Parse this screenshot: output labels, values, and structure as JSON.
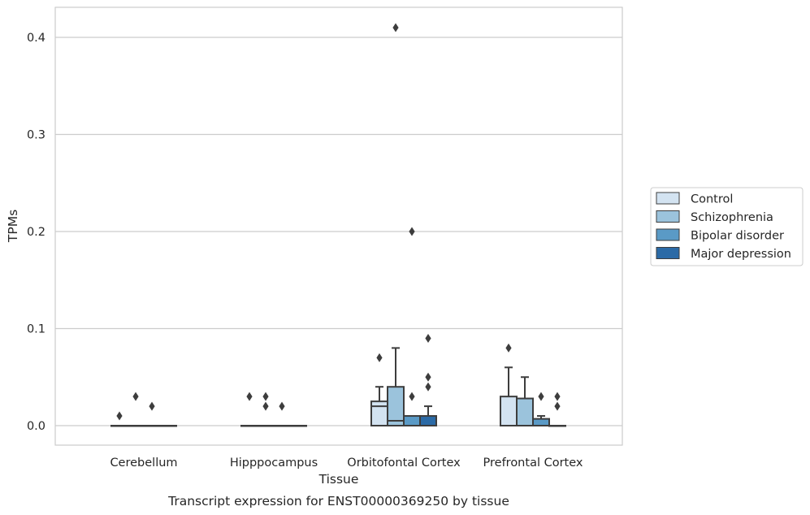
{
  "chart_data": {
    "type": "box",
    "title": "",
    "caption": "Transcript expression for ENST00000369250 by tissue",
    "xlabel": "Tissue",
    "ylabel": "TPMs",
    "ylim": [
      -0.02,
      0.43
    ],
    "yticks": [
      0.0,
      0.1,
      0.2,
      0.3,
      0.4
    ],
    "ytick_labels": [
      "0.0",
      "0.1",
      "0.2",
      "0.3",
      "0.4"
    ],
    "grid": "horizontal",
    "legend_position": "right",
    "categories": [
      "Cerebellum",
      "Hipppocampus",
      "Orbitofontal Cortex",
      "Prefrontal Cortex"
    ],
    "series": [
      {
        "name": "Control",
        "color": "#d3e3f1",
        "boxes": [
          {
            "q1": 0,
            "median": 0,
            "q3": 0,
            "whislo": 0,
            "whishi": 0,
            "fliers": [
              0.01
            ]
          },
          {
            "q1": 0,
            "median": 0,
            "q3": 0,
            "whislo": 0,
            "whishi": 0,
            "fliers": [
              0.03
            ]
          },
          {
            "q1": 0,
            "median": 0.02,
            "q3": 0.025,
            "whislo": 0,
            "whishi": 0.04,
            "fliers": [
              0.07
            ]
          },
          {
            "q1": 0,
            "median": 0,
            "q3": 0.03,
            "whislo": 0,
            "whishi": 0.06,
            "fliers": [
              0.08
            ]
          }
        ]
      },
      {
        "name": "Schizophrenia",
        "color": "#9bc3dc",
        "boxes": [
          {
            "q1": 0,
            "median": 0,
            "q3": 0,
            "whislo": 0,
            "whishi": 0,
            "fliers": [
              0.03
            ]
          },
          {
            "q1": 0,
            "median": 0,
            "q3": 0,
            "whislo": 0,
            "whishi": 0,
            "fliers": [
              0.03,
              0.02
            ]
          },
          {
            "q1": 0,
            "median": 0.005,
            "q3": 0.04,
            "whislo": 0,
            "whishi": 0.08,
            "fliers": [
              0.41
            ]
          },
          {
            "q1": 0,
            "median": 0,
            "q3": 0.028,
            "whislo": 0,
            "whishi": 0.05,
            "fliers": []
          }
        ]
      },
      {
        "name": "Bipolar disorder",
        "color": "#5a9ac6",
        "boxes": [
          {
            "q1": 0,
            "median": 0,
            "q3": 0,
            "whislo": 0,
            "whishi": 0,
            "fliers": [
              0.02
            ]
          },
          {
            "q1": 0,
            "median": 0,
            "q3": 0,
            "whislo": 0,
            "whishi": 0,
            "fliers": [
              0.02
            ]
          },
          {
            "q1": 0,
            "median": 0,
            "q3": 0.01,
            "whislo": 0,
            "whishi": 0.01,
            "fliers": [
              0.2,
              0.03
            ]
          },
          {
            "q1": 0,
            "median": 0,
            "q3": 0.007,
            "whislo": 0,
            "whishi": 0.01,
            "fliers": [
              0.03
            ]
          }
        ]
      },
      {
        "name": "Major depression",
        "color": "#2b6aa6",
        "boxes": [
          {
            "q1": 0,
            "median": 0,
            "q3": 0,
            "whislo": 0,
            "whishi": 0,
            "fliers": []
          },
          {
            "q1": 0,
            "median": 0,
            "q3": 0,
            "whislo": 0,
            "whishi": 0,
            "fliers": []
          },
          {
            "q1": 0,
            "median": 0,
            "q3": 0.01,
            "whislo": 0,
            "whishi": 0.02,
            "fliers": [
              0.09,
              0.05,
              0.04
            ]
          },
          {
            "q1": 0,
            "median": 0,
            "q3": 0,
            "whislo": 0,
            "whishi": 0,
            "fliers": [
              0.03,
              0.02
            ]
          }
        ]
      }
    ]
  }
}
